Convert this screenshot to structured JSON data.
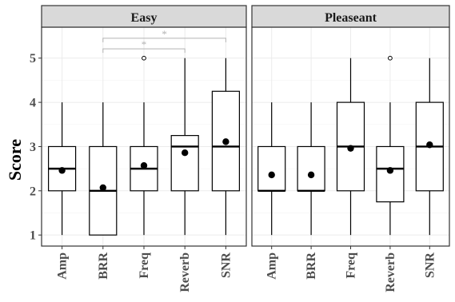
{
  "chart_data": {
    "type": "boxplot",
    "ylabel": "Score",
    "ylim": [
      0.75,
      5.7
    ],
    "yticks": [
      1,
      2,
      3,
      4,
      5
    ],
    "categories": [
      "Amp",
      "BRR",
      "Freq",
      "Reverb",
      "SNR"
    ],
    "grid": true,
    "facets": [
      {
        "name": "Easy",
        "boxes": [
          {
            "category": "Amp",
            "min": 1,
            "q1": 2,
            "median": 2.5,
            "q3": 3,
            "max": 4,
            "mean": 2.46,
            "outliers": []
          },
          {
            "category": "BRR",
            "min": 1,
            "q1": 1,
            "median": 2,
            "q3": 3,
            "max": 4,
            "mean": 2.07,
            "outliers": []
          },
          {
            "category": "Freq",
            "min": 1,
            "q1": 2,
            "median": 2.5,
            "q3": 3,
            "max": 4,
            "mean": 2.57,
            "outliers": [
              5
            ]
          },
          {
            "category": "Reverb",
            "min": 1,
            "q1": 2,
            "median": 3,
            "q3": 3.25,
            "max": 5,
            "mean": 2.86,
            "outliers": []
          },
          {
            "category": "SNR",
            "min": 1,
            "q1": 2,
            "median": 3,
            "q3": 4.25,
            "max": 5,
            "mean": 3.11,
            "outliers": []
          }
        ],
        "significance": [
          {
            "from": "BRR",
            "to": "Reverb",
            "label": "*",
            "y": 5.21
          },
          {
            "from": "BRR",
            "to": "SNR",
            "label": "*",
            "y": 5.45
          }
        ]
      },
      {
        "name": "Pleaseant",
        "boxes": [
          {
            "category": "Amp",
            "min": 1,
            "q1": 2,
            "median": 2,
            "q3": 3,
            "max": 4,
            "mean": 2.36,
            "outliers": []
          },
          {
            "category": "BRR",
            "min": 1,
            "q1": 2,
            "median": 2,
            "q3": 3,
            "max": 4,
            "mean": 2.36,
            "outliers": []
          },
          {
            "category": "Freq",
            "min": 1,
            "q1": 2,
            "median": 3,
            "q3": 4,
            "max": 5,
            "mean": 2.96,
            "outliers": []
          },
          {
            "category": "Reverb",
            "min": 1,
            "q1": 1.75,
            "median": 2.5,
            "q3": 3,
            "max": 4,
            "mean": 2.46,
            "outliers": [
              5
            ]
          },
          {
            "category": "SNR",
            "min": 1,
            "q1": 2,
            "median": 3,
            "q3": 4,
            "max": 5,
            "mean": 3.04,
            "outliers": []
          }
        ],
        "significance": []
      }
    ]
  },
  "colors": {
    "strip_fill": "#d9d9d9",
    "panel_border": "#333333",
    "grid_major": "#ebebeb",
    "grid_minor": "#f5f5f5",
    "box_line": "#000000",
    "significance": "#b3b3b3"
  }
}
